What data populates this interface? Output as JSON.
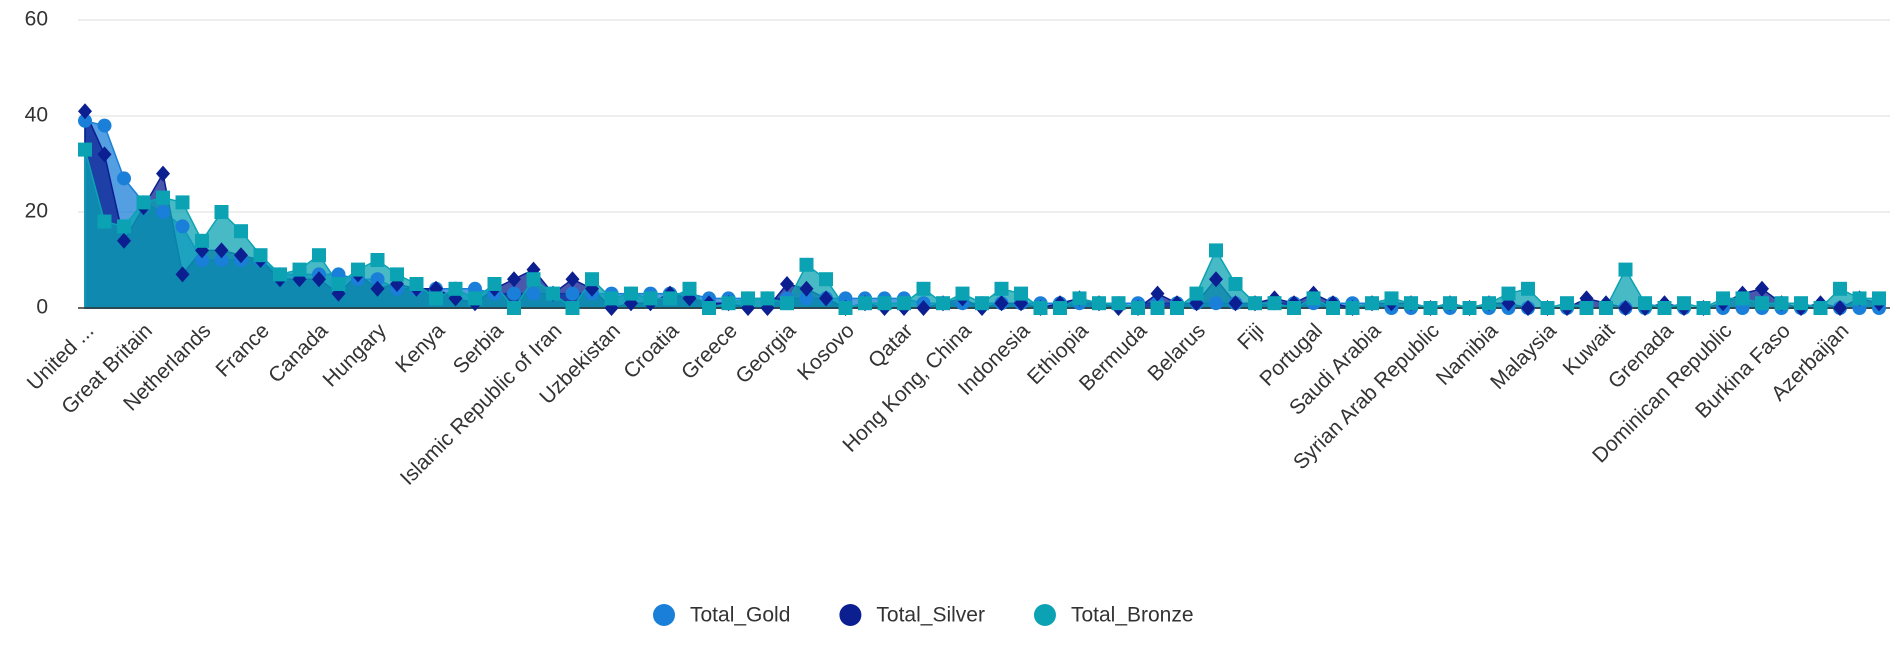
{
  "chart_data": {
    "type": "area",
    "categories": [
      "United ...",
      null,
      null,
      "Great Britain",
      null,
      null,
      "Netherlands",
      null,
      null,
      "France",
      null,
      null,
      "Canada",
      null,
      null,
      "Hungary",
      null,
      null,
      "Kenya",
      null,
      null,
      "Serbia",
      null,
      null,
      "Islamic Republic of Iran",
      null,
      null,
      "Uzbekistan",
      null,
      null,
      "Croatia",
      null,
      null,
      "Greece",
      null,
      null,
      "Georgia",
      null,
      null,
      "Kosovo",
      null,
      null,
      "Qatar",
      null,
      null,
      "Hong Kong, China",
      null,
      null,
      "Indonesia",
      null,
      null,
      "Ethiopia",
      null,
      null,
      "Bermuda",
      null,
      null,
      "Belarus",
      null,
      null,
      "Fiji",
      null,
      null,
      "Portugal",
      null,
      null,
      "Saudi Arabia",
      null,
      null,
      "Syrian Arab Republic",
      null,
      null,
      "Namibia",
      null,
      null,
      "Malaysia",
      null,
      null,
      "Kuwait",
      null,
      null,
      "Grenada",
      null,
      null,
      "Dominican Republic",
      null,
      null,
      "Burkina Faso",
      null,
      null,
      "Azerbaijan",
      null,
      null
    ],
    "series": [
      {
        "name": "Total_Gold",
        "color": "#1a7fd8",
        "marker": "circle",
        "values": [
          39,
          38,
          27,
          22,
          20,
          17,
          10,
          10,
          10,
          10,
          7,
          7,
          7,
          7,
          6,
          6,
          4,
          4,
          4,
          4,
          4,
          3,
          3,
          3,
          3,
          3,
          3,
          3,
          3,
          3,
          3,
          3,
          2,
          2,
          2,
          2,
          2,
          2,
          2,
          2,
          2,
          2,
          2,
          1,
          1,
          1,
          1,
          1,
          1,
          1,
          1,
          1,
          1,
          1,
          1,
          1,
          1,
          1,
          1,
          1,
          1,
          1,
          1,
          1,
          1,
          1,
          1,
          0,
          0,
          0,
          0,
          0,
          0,
          0,
          0,
          0,
          0,
          0,
          0,
          0,
          0,
          0,
          0,
          0,
          0,
          0,
          0,
          0,
          0,
          0,
          0,
          0,
          0
        ]
      },
      {
        "name": "Total_Silver",
        "color": "#0c1f91",
        "marker": "diamond",
        "values": [
          41,
          32,
          14,
          21,
          28,
          7,
          12,
          12,
          11,
          10,
          6,
          6,
          6,
          3,
          7,
          4,
          5,
          4,
          4,
          2,
          1,
          4,
          6,
          8,
          3,
          6,
          4,
          0,
          1,
          1,
          3,
          2,
          1,
          1,
          0,
          0,
          5,
          4,
          2,
          0,
          1,
          0,
          0,
          0,
          1,
          2,
          0,
          1,
          1,
          0,
          1,
          2,
          1,
          0,
          0,
          3,
          1,
          1,
          6,
          1,
          1,
          2,
          1,
          3,
          1,
          0,
          1,
          1,
          1,
          0,
          1,
          0,
          1,
          1,
          0,
          0,
          0,
          2,
          1,
          0,
          0,
          1,
          0,
          0,
          1,
          3,
          4,
          1,
          0,
          1,
          0,
          2,
          1
        ]
      },
      {
        "name": "Total_Bronze",
        "color": "#0ba3b3",
        "marker": "square",
        "values": [
          33,
          18,
          17,
          22,
          23,
          22,
          14,
          20,
          16,
          11,
          7,
          8,
          11,
          5,
          8,
          10,
          7,
          5,
          2,
          4,
          2,
          5,
          0,
          6,
          3,
          0,
          6,
          2,
          3,
          2,
          2,
          4,
          0,
          1,
          2,
          2,
          1,
          9,
          6,
          0,
          1,
          1,
          1,
          4,
          1,
          3,
          1,
          4,
          3,
          0,
          0,
          2,
          1,
          1,
          0,
          0,
          0,
          3,
          12,
          5,
          1,
          1,
          0,
          2,
          0,
          0,
          1,
          2,
          1,
          0,
          1,
          0,
          1,
          3,
          4,
          0,
          1,
          0,
          0,
          8,
          1,
          0,
          1,
          0,
          2,
          2,
          1,
          1,
          1,
          0,
          4,
          2,
          2
        ]
      }
    ],
    "ylim": [
      0,
      60
    ],
    "yticks": [
      0,
      20,
      40,
      60
    ],
    "grid": true,
    "legend": "bottom"
  }
}
